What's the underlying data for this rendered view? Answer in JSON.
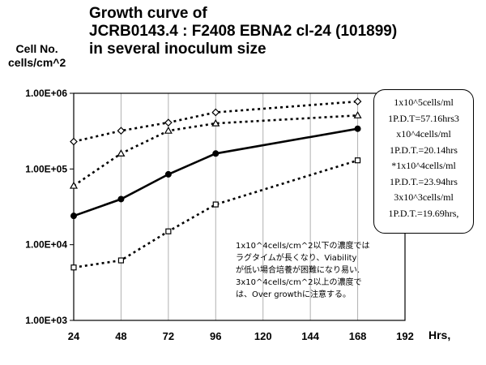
{
  "title": {
    "line1": "Growth curve of",
    "line2": "JCRB0143.4 : F2408 EBNA2 cl-24 (101899)",
    "line3": "in several inoculum size"
  },
  "axis": {
    "ylabel_line1": "Cell No.",
    "ylabel_line2": "cells/cm^2",
    "xlabel": "Hrs,"
  },
  "legend_lines": [
    "1x10^5cells/ml",
    "1P.D.T=57.16hrs3",
    "x10^4cells/ml",
    "1P.D.T.=20.14hrs",
    "*1x10^4cells/ml",
    "1P.D.T.=23.94hrs",
    "3x10^3cells/ml",
    "1P.D.T.=19.69hrs,"
  ],
  "note_lines": [
    "1x10^4cells/cm^2以下の濃度では",
    "ラグタイムが長くなり、Viability",
    "が低い場合培養が困難になり易い.",
    "3x10^4cells/cm^2以上の濃度で",
    "は、Over growthに注意する。"
  ],
  "chart_data": {
    "type": "line",
    "yscale": "log",
    "ylim": [
      1000,
      1000000
    ],
    "xlim": [
      24,
      192
    ],
    "xticks": [
      24,
      48,
      72,
      96,
      120,
      144,
      168,
      192
    ],
    "xtick_labels": [
      "24",
      "48",
      "72",
      "96",
      "120",
      "144",
      "168",
      "192"
    ],
    "yticks": [
      1000,
      10000,
      100000,
      1000000
    ],
    "ytick_labels": [
      "1.00E+03",
      "1.00E+04",
      "1.00E+05",
      "1.00E+06"
    ],
    "grid": "vertical",
    "series": [
      {
        "marker": "diamond",
        "style": "dotted",
        "x": [
          24,
          48,
          72,
          96,
          168
        ],
        "y": [
          230000,
          320000,
          410000,
          560000,
          780000
        ]
      },
      {
        "marker": "triangle",
        "style": "dotted",
        "x": [
          24,
          48,
          72,
          96,
          168
        ],
        "y": [
          60000,
          160000,
          320000,
          400000,
          510000
        ]
      },
      {
        "marker": "none",
        "style": "solid",
        "x": [
          24,
          48,
          72,
          96,
          168
        ],
        "y": [
          24000,
          40000,
          85000,
          160000,
          340000
        ]
      },
      {
        "marker": "square",
        "style": "dotted",
        "x": [
          24,
          48,
          72,
          96,
          168
        ],
        "y": [
          5000,
          6200,
          15000,
          34000,
          130000
        ]
      }
    ]
  }
}
